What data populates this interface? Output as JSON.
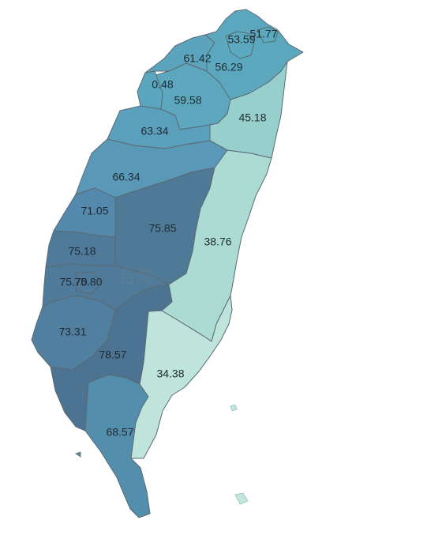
{
  "map": {
    "watermark": "台灣",
    "color_scale": {
      "low": "#c2e6de",
      "mid": "#5fa8bd",
      "high": "#4f7896"
    },
    "regions": [
      {
        "id": "keelung",
        "value": "51.77",
        "color": "#5aa9bf"
      },
      {
        "id": "taipei",
        "value": "53.59",
        "color": "#5aa9bf"
      },
      {
        "id": "new-taipei",
        "value": "56.29",
        "color": "#5ba8be"
      },
      {
        "id": "taoyuan",
        "value": "61.42",
        "color": "#5ca4bd"
      },
      {
        "id": "hsinchu-city",
        "value": "0.48",
        "color": "#5aa6bf"
      },
      {
        "id": "hsinchu-county",
        "value": "59.58",
        "color": "#5ca6be"
      },
      {
        "id": "yilan",
        "value": "45.18",
        "color": "#96cfcc"
      },
      {
        "id": "miaoli",
        "value": "63.34",
        "color": "#5aa0bd"
      },
      {
        "id": "taichung",
        "value": "66.34",
        "color": "#5a98b8"
      },
      {
        "id": "changhua",
        "value": "71.05",
        "color": "#5488ac"
      },
      {
        "id": "nantou",
        "value": "75.85",
        "color": "#4e7997"
      },
      {
        "id": "hualien",
        "value": "38.76",
        "color": "#acdbd4"
      },
      {
        "id": "yunlin",
        "value": "75.18",
        "color": "#4f7a99"
      },
      {
        "id": "chiayi-county",
        "value": "75.70",
        "color": "#4f7a99"
      },
      {
        "id": "chiayi-city",
        "value": "75.80",
        "color": "#4f7a99"
      },
      {
        "id": "tainan",
        "value": "73.31",
        "color": "#517f9f"
      },
      {
        "id": "kaohsiung",
        "value": "78.57",
        "color": "#4c7392"
      },
      {
        "id": "taitung",
        "value": "34.38",
        "color": "#bfe4dc"
      },
      {
        "id": "pingtung",
        "value": "68.57",
        "color": "#548ead"
      }
    ]
  }
}
